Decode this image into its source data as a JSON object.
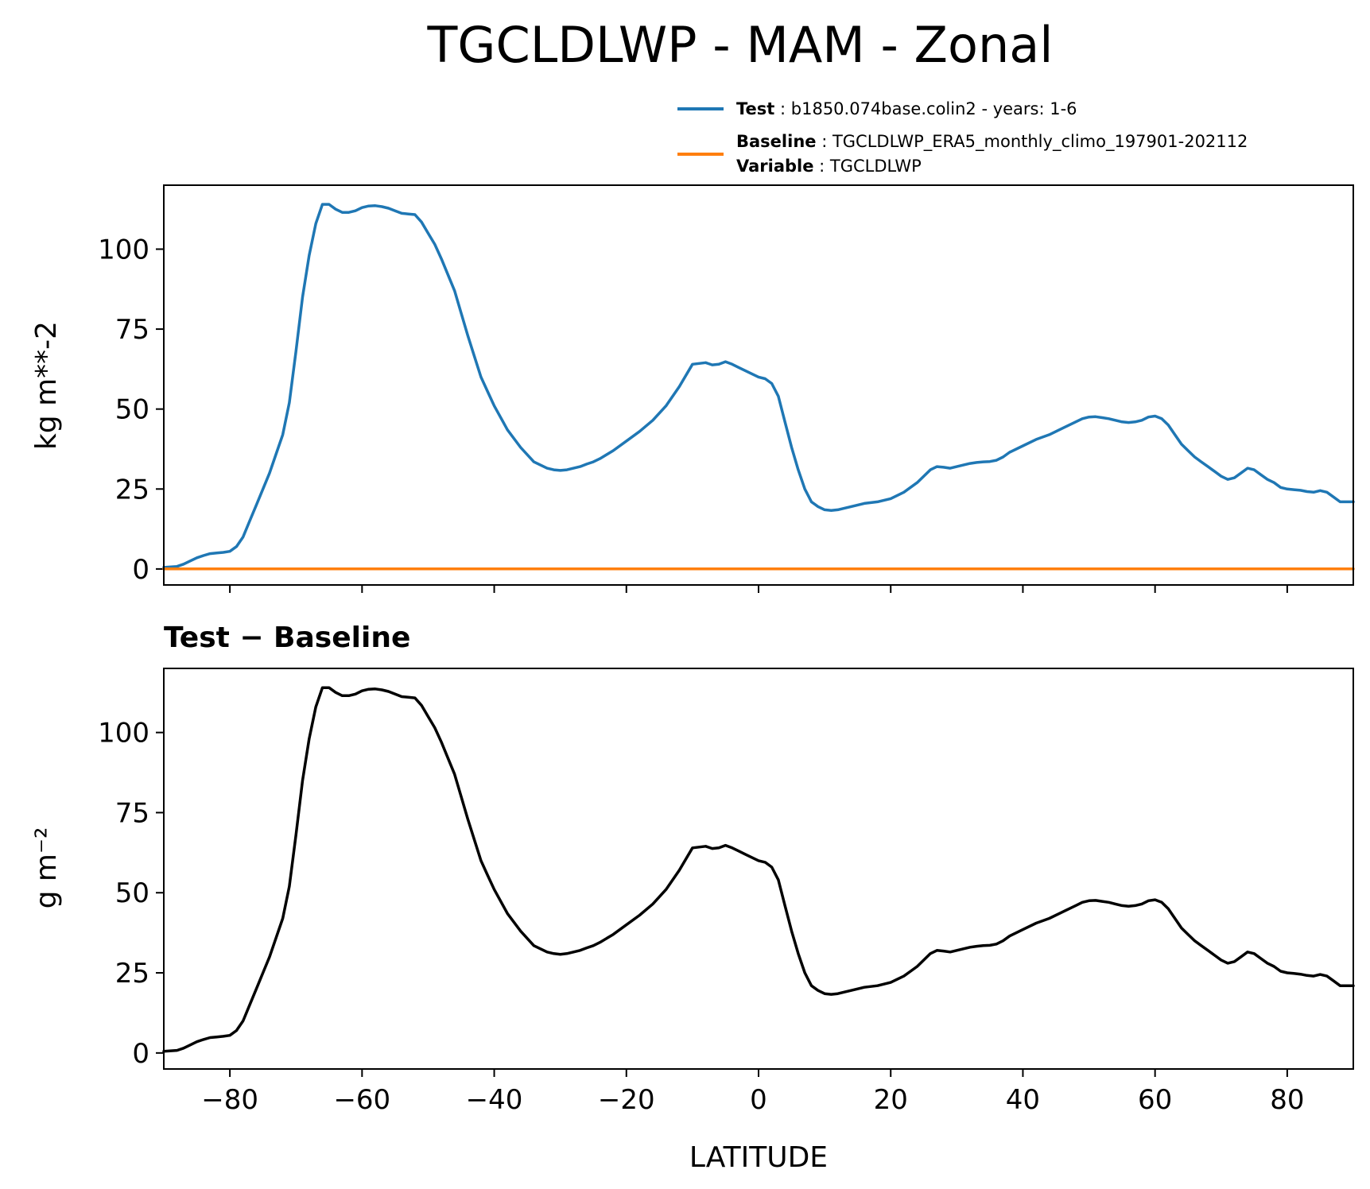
{
  "figure": {
    "title": "TGCLDLWP - MAM - Zonal"
  },
  "legend": {
    "test_key": "Test",
    "test_value": "b1850.074base.colin2 - years: 1-6",
    "baseline_key": "Baseline",
    "baseline_value": "TGCLDLWP_ERA5_monthly_climo_197901-202112",
    "variable_key": "Variable",
    "variable_value": "TGCLDLWP"
  },
  "colors": {
    "test": "#1f77b4",
    "baseline": "#ff7f0e",
    "difference": "#000000"
  },
  "chart_data": [
    {
      "type": "line",
      "title": "",
      "xlabel": "",
      "ylabel": "kg m**-2",
      "xlim": [
        -90,
        90
      ],
      "ylim": [
        -5,
        120
      ],
      "xticks": [
        -80,
        -60,
        -40,
        -20,
        0,
        20,
        40,
        60,
        80
      ],
      "xtick_labels_shown": false,
      "yticks": [
        0,
        25,
        50,
        75,
        100
      ],
      "ytick_labels": [
        "0",
        "25",
        "50",
        "75",
        "100"
      ],
      "series": [
        {
          "name": "Test",
          "color_key": "test",
          "x": [
            -90,
            -88,
            -87,
            -86,
            -85,
            -84,
            -83,
            -82,
            -81,
            -80,
            -79,
            -78,
            -77,
            -76,
            -75,
            -74,
            -73,
            -72,
            -71,
            -70,
            -69,
            -68,
            -67,
            -66,
            -65,
            -64,
            -63,
            -62,
            -61,
            -60,
            -59,
            -58,
            -57,
            -56,
            -55,
            -54,
            -53,
            -52,
            -51,
            -50,
            -49,
            -48,
            -47,
            -46,
            -45,
            -44,
            -43,
            -42,
            -41,
            -40,
            -38,
            -36,
            -34,
            -32,
            -31,
            -30,
            -29,
            -28,
            -27,
            -26,
            -25,
            -24,
            -22,
            -20,
            -18,
            -16,
            -14,
            -12,
            -10,
            -8,
            -7,
            -6,
            -5,
            -4,
            -3,
            -2,
            -1,
            0,
            1,
            2,
            3,
            4,
            5,
            6,
            7,
            8,
            9,
            10,
            11,
            12,
            13,
            14,
            16,
            18,
            20,
            22,
            24,
            26,
            27,
            28,
            29,
            30,
            31,
            32,
            33,
            34,
            35,
            36,
            37,
            38,
            40,
            42,
            44,
            46,
            47,
            48,
            49,
            50,
            51,
            52,
            53,
            54,
            55,
            56,
            57,
            58,
            59,
            60,
            61,
            62,
            63,
            64,
            65,
            66,
            67,
            68,
            69,
            70,
            71,
            72,
            73,
            74,
            75,
            76,
            77,
            78,
            79,
            80,
            81,
            82,
            83,
            84,
            85,
            86,
            87,
            88,
            89,
            90
          ],
          "y": [
            0.5,
            0.8,
            1.5,
            2.5,
            3.5,
            4.2,
            4.8,
            5.0,
            5.2,
            5.5,
            7.0,
            10.0,
            15.0,
            20.0,
            25.0,
            30.0,
            36.0,
            42.0,
            52.0,
            68.0,
            85.0,
            98.0,
            108.0,
            114.0,
            114.0,
            112.5,
            111.5,
            111.5,
            112.0,
            113.0,
            113.5,
            113.6,
            113.3,
            112.8,
            112.0,
            111.2,
            111.0,
            110.8,
            108.5,
            105.0,
            101.5,
            97.0,
            92.0,
            87.0,
            80.0,
            73.0,
            66.5,
            60.0,
            55.5,
            51.0,
            43.5,
            38.0,
            33.5,
            31.5,
            31.0,
            30.8,
            31.0,
            31.5,
            32.0,
            32.8,
            33.5,
            34.5,
            37.0,
            40.0,
            43.0,
            46.5,
            51.0,
            57.0,
            64.0,
            64.5,
            63.8,
            64.0,
            64.8,
            64.0,
            63.0,
            62.0,
            61.0,
            60.0,
            59.5,
            58.0,
            54.0,
            46.0,
            38.0,
            31.0,
            25.0,
            21.0,
            19.5,
            18.5,
            18.3,
            18.5,
            19.0,
            19.5,
            20.5,
            21.0,
            22.0,
            24.0,
            27.0,
            31.0,
            32.0,
            31.8,
            31.5,
            32.0,
            32.5,
            33.0,
            33.3,
            33.5,
            33.6,
            34.0,
            35.0,
            36.5,
            38.5,
            40.5,
            42.0,
            44.0,
            45.0,
            46.0,
            47.0,
            47.5,
            47.6,
            47.3,
            47.0,
            46.5,
            46.0,
            45.8,
            46.0,
            46.5,
            47.5,
            47.8,
            47.0,
            45.0,
            42.0,
            39.0,
            37.0,
            35.0,
            33.5,
            32.0,
            30.5,
            29.0,
            28.0,
            28.5,
            30.0,
            31.5,
            31.0,
            29.5,
            28.0,
            27.0,
            25.5,
            25.0,
            24.8,
            24.6,
            24.2,
            24.0,
            24.5,
            24.0,
            22.5,
            21.0,
            21.0,
            21.0
          ]
        },
        {
          "name": "Baseline",
          "color_key": "baseline",
          "x": [
            -90,
            90
          ],
          "y": [
            0.05,
            0.05
          ]
        }
      ]
    },
    {
      "type": "line",
      "title": "Test − Baseline",
      "xlabel": "LATITUDE",
      "ylabel": "g m⁻²",
      "xlim": [
        -90,
        90
      ],
      "ylim": [
        -5,
        120
      ],
      "xticks": [
        -80,
        -60,
        -40,
        -20,
        0,
        20,
        40,
        60,
        80
      ],
      "xtick_labels": [
        "−80",
        "−60",
        "−40",
        "−20",
        "0",
        "20",
        "40",
        "60",
        "80"
      ],
      "yticks": [
        0,
        25,
        50,
        75,
        100
      ],
      "ytick_labels": [
        "0",
        "25",
        "50",
        "75",
        "100"
      ],
      "series": [
        {
          "color_key": "difference",
          "x": [
            -90,
            -88,
            -87,
            -86,
            -85,
            -84,
            -83,
            -82,
            -81,
            -80,
            -79,
            -78,
            -77,
            -76,
            -75,
            -74,
            -73,
            -72,
            -71,
            -70,
            -69,
            -68,
            -67,
            -66,
            -65,
            -64,
            -63,
            -62,
            -61,
            -60,
            -59,
            -58,
            -57,
            -56,
            -55,
            -54,
            -53,
            -52,
            -51,
            -50,
            -49,
            -48,
            -47,
            -46,
            -45,
            -44,
            -43,
            -42,
            -41,
            -40,
            -38,
            -36,
            -34,
            -32,
            -31,
            -30,
            -29,
            -28,
            -27,
            -26,
            -25,
            -24,
            -22,
            -20,
            -18,
            -16,
            -14,
            -12,
            -10,
            -8,
            -7,
            -6,
            -5,
            -4,
            -3,
            -2,
            -1,
            0,
            1,
            2,
            3,
            4,
            5,
            6,
            7,
            8,
            9,
            10,
            11,
            12,
            13,
            14,
            16,
            18,
            20,
            22,
            24,
            26,
            27,
            28,
            29,
            30,
            31,
            32,
            33,
            34,
            35,
            36,
            37,
            38,
            40,
            42,
            44,
            46,
            47,
            48,
            49,
            50,
            51,
            52,
            53,
            54,
            55,
            56,
            57,
            58,
            59,
            60,
            61,
            62,
            63,
            64,
            65,
            66,
            67,
            68,
            69,
            70,
            71,
            72,
            73,
            74,
            75,
            76,
            77,
            78,
            79,
            80,
            81,
            82,
            83,
            84,
            85,
            86,
            87,
            88,
            89,
            90
          ],
          "y": [
            0.5,
            0.8,
            1.5,
            2.5,
            3.5,
            4.2,
            4.8,
            5.0,
            5.2,
            5.5,
            7.0,
            10.0,
            15.0,
            20.0,
            25.0,
            30.0,
            36.0,
            42.0,
            52.0,
            68.0,
            85.0,
            98.0,
            108.0,
            114.0,
            114.0,
            112.5,
            111.5,
            111.5,
            112.0,
            113.0,
            113.5,
            113.6,
            113.3,
            112.8,
            112.0,
            111.2,
            111.0,
            110.8,
            108.5,
            105.0,
            101.5,
            97.0,
            92.0,
            87.0,
            80.0,
            73.0,
            66.5,
            60.0,
            55.5,
            51.0,
            43.5,
            38.0,
            33.5,
            31.5,
            31.0,
            30.8,
            31.0,
            31.5,
            32.0,
            32.8,
            33.5,
            34.5,
            37.0,
            40.0,
            43.0,
            46.5,
            51.0,
            57.0,
            64.0,
            64.5,
            63.8,
            64.0,
            64.8,
            64.0,
            63.0,
            62.0,
            61.0,
            60.0,
            59.5,
            58.0,
            54.0,
            46.0,
            38.0,
            31.0,
            25.0,
            21.0,
            19.5,
            18.5,
            18.3,
            18.5,
            19.0,
            19.5,
            20.5,
            21.0,
            22.0,
            24.0,
            27.0,
            31.0,
            32.0,
            31.8,
            31.5,
            32.0,
            32.5,
            33.0,
            33.3,
            33.5,
            33.6,
            34.0,
            35.0,
            36.5,
            38.5,
            40.5,
            42.0,
            44.0,
            45.0,
            46.0,
            47.0,
            47.5,
            47.6,
            47.3,
            47.0,
            46.5,
            46.0,
            45.8,
            46.0,
            46.5,
            47.5,
            47.8,
            47.0,
            45.0,
            42.0,
            39.0,
            37.0,
            35.0,
            33.5,
            32.0,
            30.5,
            29.0,
            28.0,
            28.5,
            30.0,
            31.5,
            31.0,
            29.5,
            28.0,
            27.0,
            25.5,
            25.0,
            24.8,
            24.6,
            24.2,
            24.0,
            24.5,
            24.0,
            22.5,
            21.0,
            21.0,
            21.0
          ]
        }
      ]
    }
  ]
}
